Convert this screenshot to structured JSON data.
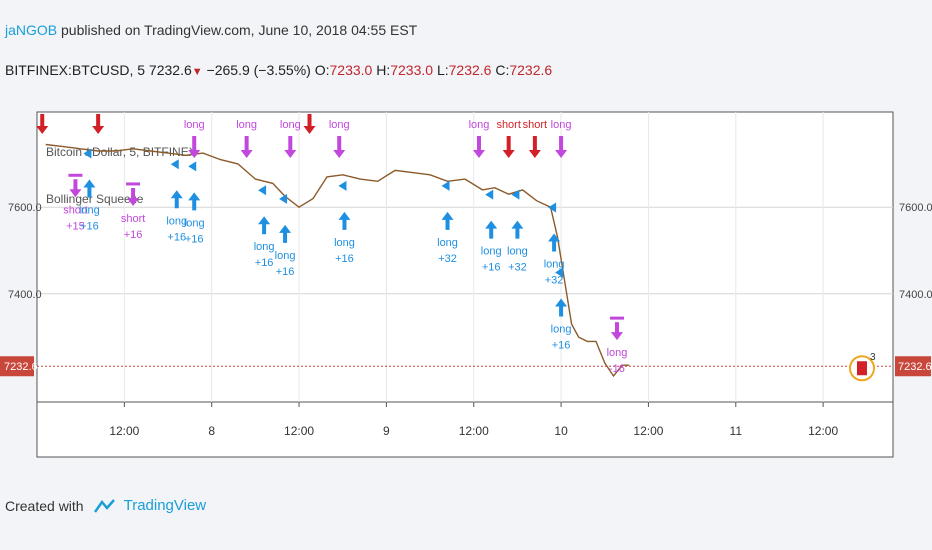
{
  "header": {
    "user": "jaNGOB",
    "published": "published on TradingView.com, June 10, 2018 04:55 EST",
    "symbol": "BITFINEX:BTCUSD, 5",
    "last": "7232.6",
    "change": "−265.9 (−3.55%)",
    "open_label": "O:",
    "open": "7233.0",
    "high_label": "H:",
    "high": "7233.0",
    "low_label": "L:",
    "low": "7232.6",
    "close_label": "C:",
    "close": "7232.6"
  },
  "footer": {
    "created_with": "Created with",
    "brand": "TradingView"
  },
  "colors": {
    "long": "#1e8fe1",
    "short": "#d31f26",
    "purple": "#c247dc",
    "price_line": "#8b5a2b",
    "last_price": "#c8463a"
  },
  "chart_data": {
    "type": "line",
    "title": "Bitcoin / Dollar, 5, BITFINEX",
    "indicator": "Bollinger Squeeze",
    "ylim": [
      7150,
      7820
    ],
    "y_ticks": [
      7600.0,
      7400.0
    ],
    "y_tick_labels": [
      "7600.0",
      "7400.0"
    ],
    "last_price_label": "7232.6",
    "x_tick_labels": [
      "12:00",
      "8",
      "12:00",
      "9",
      "12:00",
      "10",
      "12:00",
      "11",
      "12:00"
    ],
    "x_ticks_t": [
      0.5,
      1,
      1.5,
      2,
      2.5,
      3,
      3.5,
      4,
      4.5
    ],
    "series": [
      {
        "t": [
          0.05,
          0.15,
          0.25,
          0.35,
          0.45,
          0.55,
          0.65,
          0.75,
          0.85,
          0.95,
          1.05,
          1.15,
          1.25,
          1.35,
          1.42,
          1.5,
          1.58,
          1.66,
          1.75,
          1.85,
          1.95,
          2.05,
          2.15,
          2.25,
          2.35,
          2.45,
          2.55,
          2.62,
          2.7,
          2.78,
          2.86,
          2.94,
          2.98,
          3.02,
          3.06,
          3.1,
          3.15,
          3.2,
          3.25,
          3.3,
          3.35,
          3.39
        ],
        "price": [
          7745,
          7740,
          7735,
          7730,
          7730,
          7735,
          7730,
          7725,
          7720,
          7725,
          7710,
          7700,
          7665,
          7655,
          7625,
          7600,
          7620,
          7670,
          7675,
          7665,
          7660,
          7685,
          7680,
          7675,
          7660,
          7665,
          7640,
          7645,
          7630,
          7640,
          7615,
          7600,
          7530,
          7430,
          7330,
          7300,
          7290,
          7290,
          7240,
          7210,
          7235,
          7235
        ]
      }
    ],
    "annotations": [
      {
        "kind": "short",
        "t": 0.22,
        "price": 7720,
        "label": "short",
        "pnl": "+15",
        "color": "purple"
      },
      {
        "kind": "long",
        "t": 0.3,
        "price": 7715,
        "label": "long",
        "pnl": "+16",
        "color": "blue"
      },
      {
        "kind": "short",
        "t": 0.55,
        "price": 7700,
        "label": "short",
        "pnl": "+16",
        "color": "purple"
      },
      {
        "kind": "long",
        "t": 0.8,
        "price": 7690,
        "label": "long",
        "pnl": "+16",
        "color": "blue"
      },
      {
        "kind": "long",
        "t": 0.9,
        "price": 7685,
        "label": "long",
        "pnl": "+16",
        "color": "blue"
      },
      {
        "kind": "long",
        "t": 1.3,
        "price": 7630,
        "label": "long",
        "pnl": "+16",
        "color": "blue"
      },
      {
        "kind": "long",
        "t": 1.42,
        "price": 7610,
        "label": "long",
        "pnl": "+16",
        "color": "blue"
      },
      {
        "kind": "long",
        "t": 1.76,
        "price": 7640,
        "label": "long",
        "pnl": "+16",
        "color": "blue"
      },
      {
        "kind": "long",
        "t": 2.35,
        "price": 7640,
        "label": "long",
        "pnl": "+32",
        "color": "blue"
      },
      {
        "kind": "long",
        "t": 2.6,
        "price": 7620,
        "label": "long",
        "pnl": "+16",
        "color": "blue"
      },
      {
        "kind": "long",
        "t": 2.75,
        "price": 7620,
        "label": "long",
        "pnl": "+32",
        "color": "blue"
      },
      {
        "kind": "long",
        "t": 2.96,
        "price": 7590,
        "label": "long",
        "pnl": "+32",
        "color": "blue"
      },
      {
        "kind": "long",
        "t": 3.0,
        "price": 7440,
        "label": "long",
        "pnl": "+16",
        "color": "blue"
      },
      {
        "kind": "short",
        "t": 3.32,
        "price": 7390,
        "label": "long",
        "pnl": "-16",
        "color": "purple"
      }
    ],
    "top_labels": [
      {
        "t": 0.9,
        "text": "long",
        "color": "purple"
      },
      {
        "t": 1.2,
        "text": "long",
        "color": "purple"
      },
      {
        "t": 1.45,
        "text": "long",
        "color": "purple"
      },
      {
        "t": 1.73,
        "text": "long",
        "color": "purple"
      },
      {
        "t": 2.53,
        "text": "long",
        "color": "purple"
      },
      {
        "t": 2.7,
        "text": "short",
        "color": "red"
      },
      {
        "t": 2.85,
        "text": "short",
        "color": "red"
      },
      {
        "t": 3.0,
        "text": "long",
        "color": "purple"
      }
    ],
    "grid": true,
    "legend": "top-left",
    "flag_count": "3"
  }
}
